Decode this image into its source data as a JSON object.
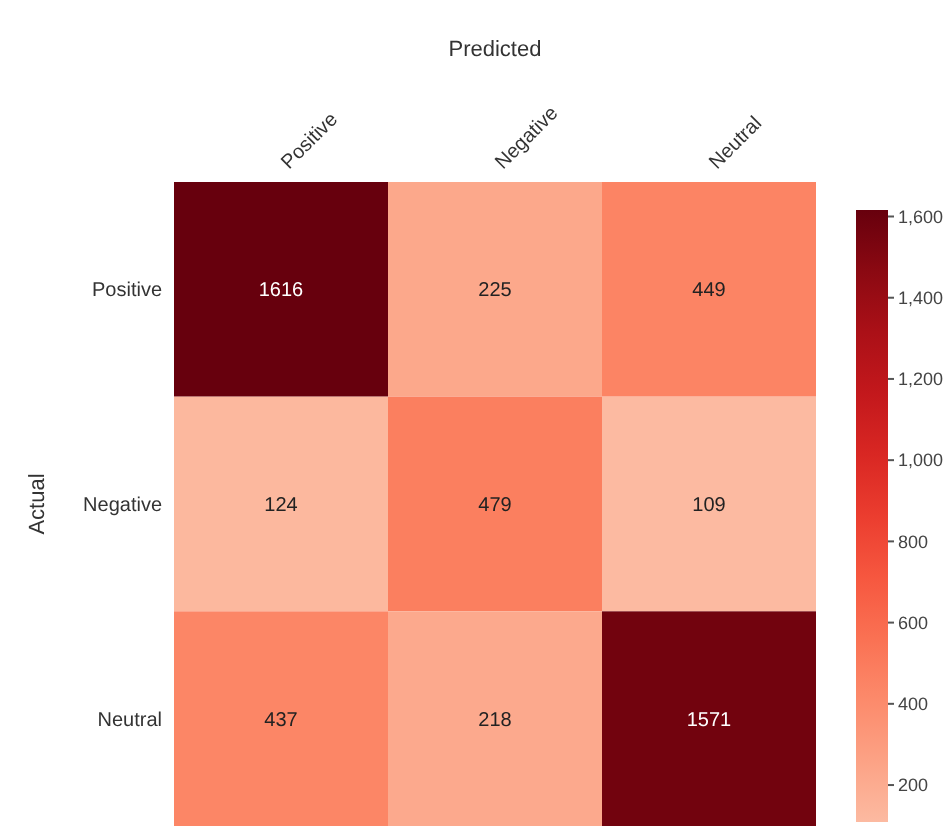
{
  "chart_data": {
    "type": "heatmap",
    "xlabel": "Predicted",
    "ylabel": "Actual",
    "clim": [
      109,
      1616
    ],
    "categories": [
      "Positive",
      "Negative",
      "Neutral"
    ],
    "y_categories": [
      "Positive",
      "Negative",
      "Neutral"
    ],
    "cells": [
      [
        1616,
        225,
        449
      ],
      [
        124,
        479,
        109
      ],
      [
        437,
        218,
        1571
      ]
    ],
    "cticks": [
      {
        "value": 200,
        "label": "200"
      },
      {
        "value": 400,
        "label": "400"
      },
      {
        "value": 600,
        "label": "600"
      },
      {
        "value": 800,
        "label": "800"
      },
      {
        "value": 1000,
        "label": "1,000"
      },
      {
        "value": 1200,
        "label": "1,200"
      },
      {
        "value": 1400,
        "label": "1,400"
      },
      {
        "value": 1600,
        "label": "1,600"
      }
    ],
    "data_labels": true
  }
}
